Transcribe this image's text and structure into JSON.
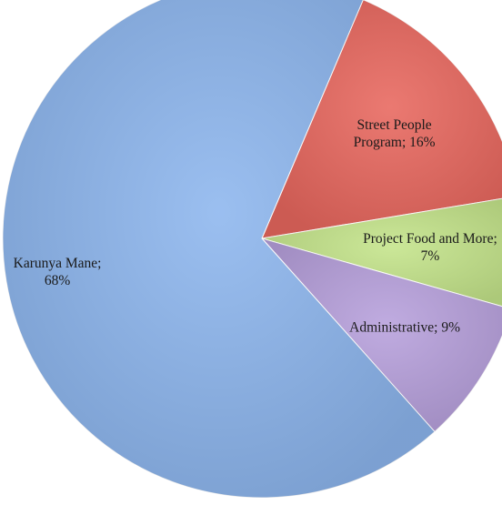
{
  "chart_data": {
    "type": "pie",
    "categories": [
      "Street People Program",
      "Project Food and More",
      "Administrative",
      "Karunya Mane"
    ],
    "values": [
      16,
      7,
      9,
      68
    ],
    "value_labels": [
      "16%",
      "7%",
      "9%",
      "68%"
    ],
    "label_separator": ";",
    "colors": [
      "#e8675e",
      "#c4e48a",
      "#b7a0dc",
      "#8db6ee"
    ]
  }
}
